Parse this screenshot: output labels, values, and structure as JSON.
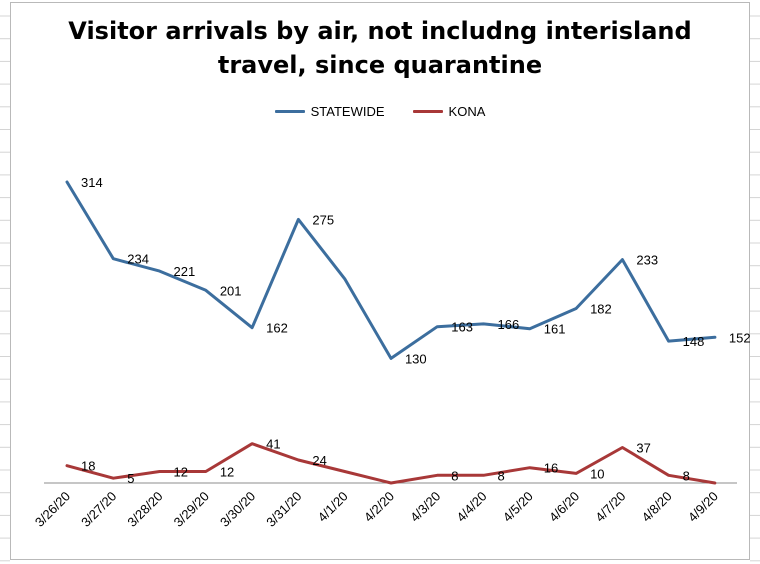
{
  "chart_data": {
    "type": "line",
    "title_lines": [
      "Visitor arrivals by air, not includng interisland",
      "travel, since quarantine"
    ],
    "xlabel": "",
    "ylabel": "",
    "categories": [
      "3/26/20",
      "3/27/20",
      "3/28/20",
      "3/29/20",
      "3/30/20",
      "3/31/20",
      "4/1/20",
      "4/2/20",
      "4/3/20",
      "4/4/20",
      "4/5/20",
      "4/6/20",
      "4/7/20",
      "4/8/20",
      "4/9/20"
    ],
    "ylim": [
      0,
      340
    ],
    "grid": false,
    "legend_position": "top-center",
    "series": [
      {
        "name": "STATEWIDE",
        "color": "#3c6e9e",
        "values": [
          314,
          234,
          221,
          201,
          162,
          275,
          213,
          130,
          163,
          166,
          161,
          182,
          233,
          148,
          152
        ],
        "data_labels": [
          "314",
          "234",
          "221",
          "201",
          "162",
          "275",
          "",
          "130",
          "163",
          "166",
          "161",
          "182",
          "233",
          "148",
          "152"
        ]
      },
      {
        "name": "KONA",
        "color": "#a83838",
        "values": [
          18,
          5,
          12,
          12,
          41,
          24,
          12,
          0,
          8,
          8,
          16,
          10,
          37,
          8,
          0
        ],
        "data_labels": [
          "18",
          "5",
          "12",
          "12",
          "41",
          "24",
          "",
          "",
          "8",
          "8",
          "16",
          "10",
          "37",
          "8",
          ""
        ]
      }
    ]
  }
}
